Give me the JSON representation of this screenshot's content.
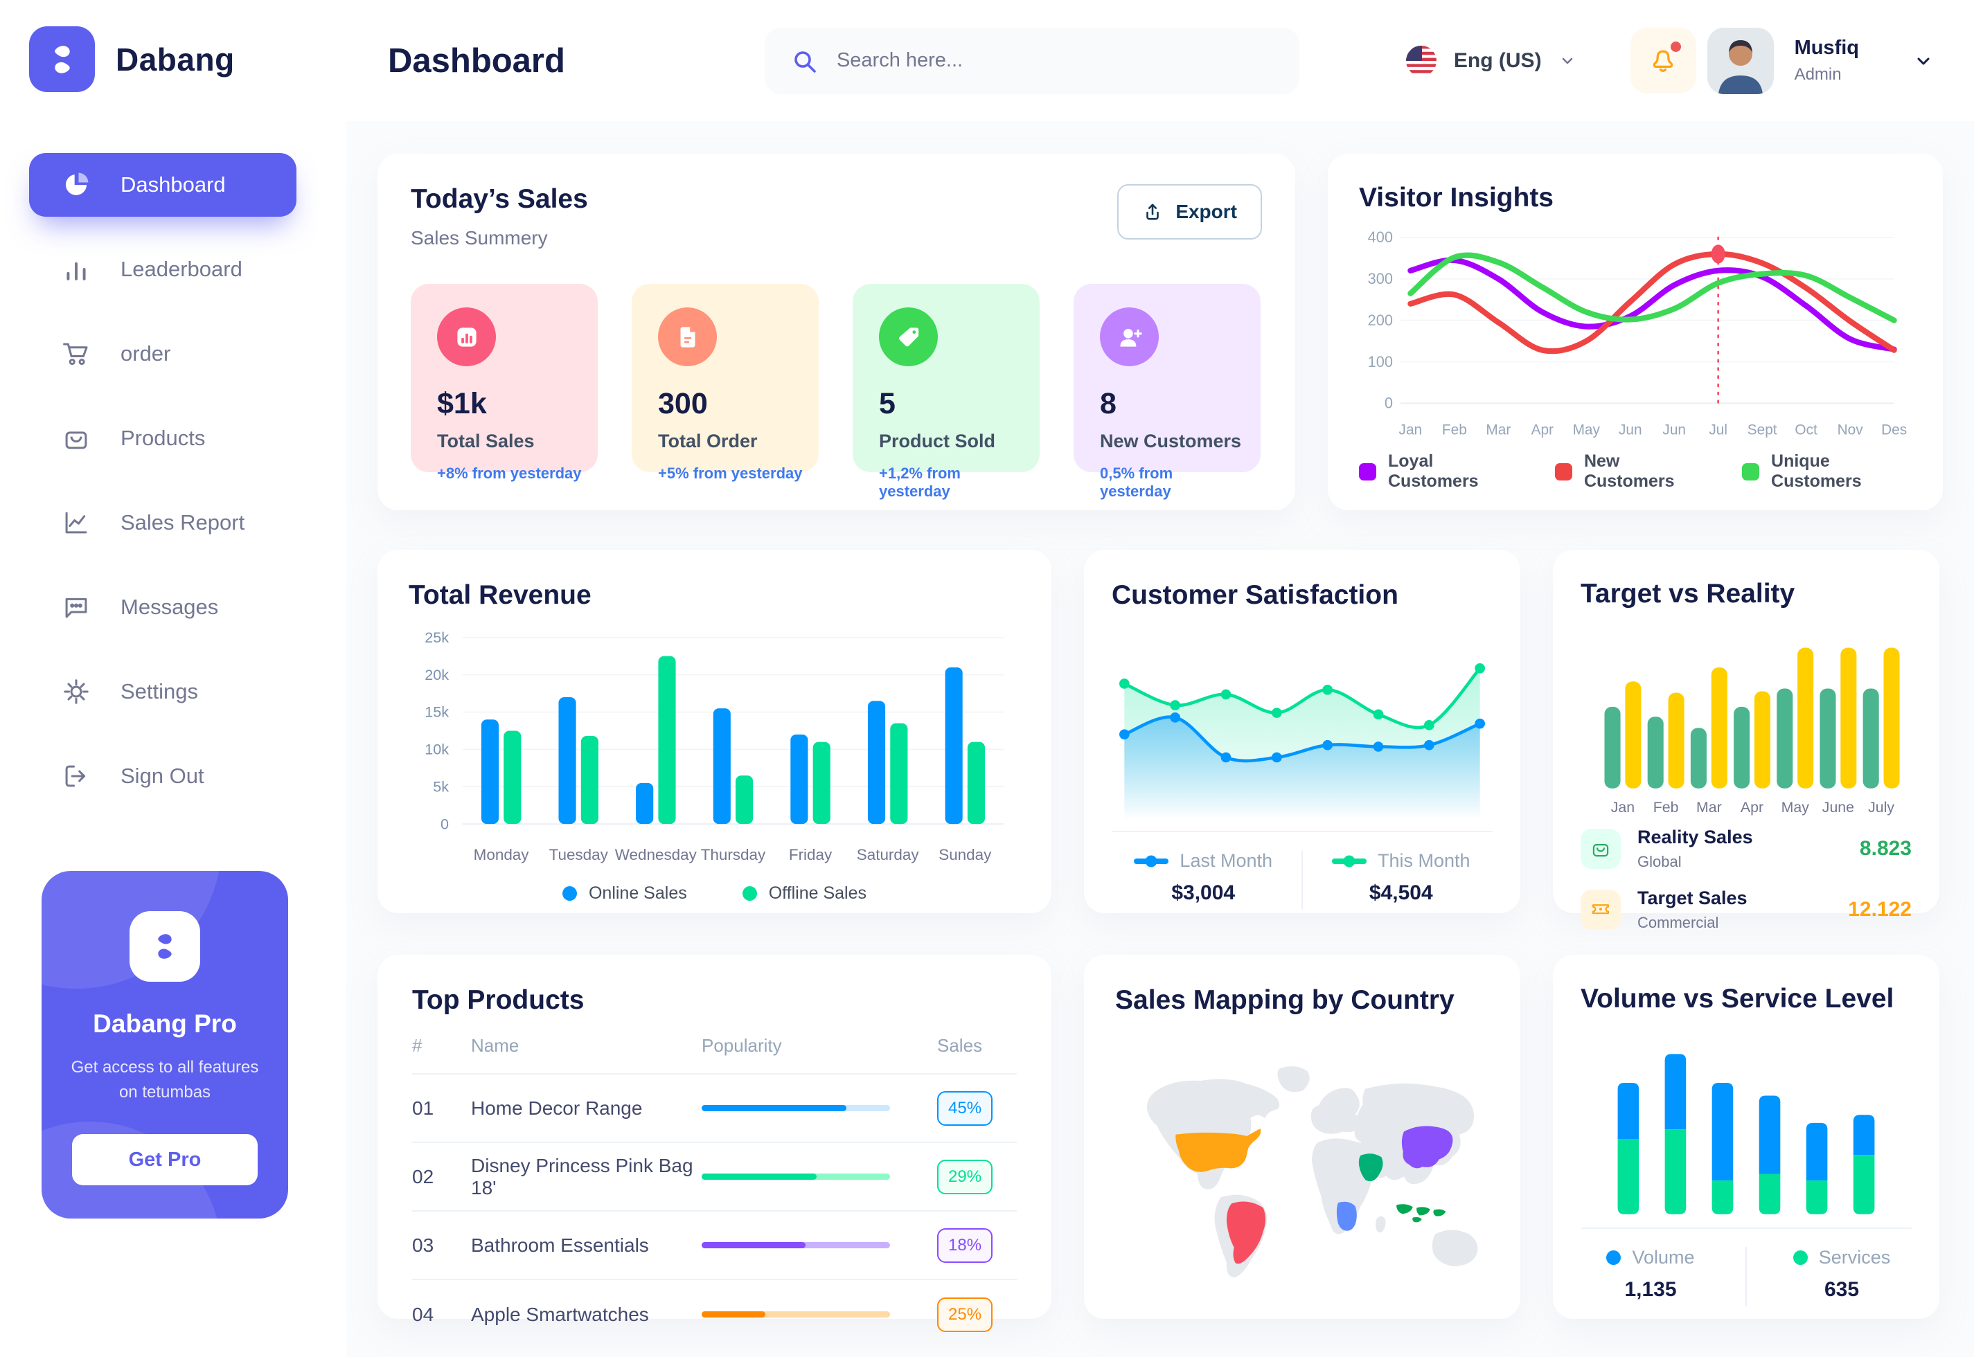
{
  "brand": {
    "name": "Dabang"
  },
  "sidebar": {
    "items": [
      {
        "label": "Dashboard"
      },
      {
        "label": "Leaderboard"
      },
      {
        "label": "order"
      },
      {
        "label": "Products"
      },
      {
        "label": "Sales Report"
      },
      {
        "label": "Messages"
      },
      {
        "label": "Settings"
      },
      {
        "label": "Sign Out"
      }
    ],
    "pro_card": {
      "title": "Dabang Pro",
      "subtitle": "Get access to all features on tetumbas",
      "button": "Get Pro"
    }
  },
  "header": {
    "title": "Dashboard",
    "search_placeholder": "Search here...",
    "language": "Eng (US)",
    "user_name": "Musfiq",
    "user_role": "Admin",
    "icons": {
      "bell": "notification-bell",
      "flag": "us-flag"
    }
  },
  "today_sales": {
    "title": "Today’s Sales",
    "subtitle": "Sales Summery",
    "export_label": "Export",
    "cards": [
      {
        "value": "$1k",
        "label": "Total Sales",
        "delta": "+8% from yesterday",
        "bg": "#FFE2E5",
        "icon_bg": "#FA5A7D",
        "icon": "bar-chart-icon"
      },
      {
        "value": "300",
        "label": "Total Order",
        "delta": "+5% from yesterday",
        "bg": "#FFF4DE",
        "icon_bg": "#FF947A",
        "icon": "receipt-icon"
      },
      {
        "value": "5",
        "label": "Product Sold",
        "delta": "+1,2% from yesterday",
        "bg": "#DCFCE7",
        "icon_bg": "#3CD856",
        "icon": "tag-icon"
      },
      {
        "value": "8",
        "label": "New Customers",
        "delta": "0,5% from yesterday",
        "bg": "#F3E8FF",
        "icon_bg": "#BF83FF",
        "icon": "user-plus-icon"
      }
    ]
  },
  "chart_data": [
    {
      "id": "visitor_insights",
      "type": "line",
      "title": "Visitor Insights",
      "x": [
        "Jan",
        "Feb",
        "Mar",
        "Apr",
        "May",
        "Jun",
        "Jun",
        "Jul",
        "Sept",
        "Oct",
        "Nov",
        "Des"
      ],
      "ylim": [
        0,
        400
      ],
      "yticks": [
        0,
        100,
        200,
        300,
        400
      ],
      "grid": true,
      "legend_position": "bottom",
      "series": [
        {
          "name": "Loyal Customers",
          "color": "#A700FF",
          "values": [
            320,
            345,
            300,
            220,
            185,
            210,
            285,
            320,
            305,
            235,
            155,
            130
          ]
        },
        {
          "name": "New Customers",
          "color": "#EF4444",
          "values": [
            240,
            262,
            195,
            128,
            150,
            245,
            335,
            360,
            338,
            278,
            198,
            128
          ]
        },
        {
          "name": "Unique Customers",
          "color": "#3CD856",
          "values": [
            265,
            352,
            340,
            280,
            220,
            202,
            228,
            290,
            312,
            308,
            255,
            200
          ]
        }
      ],
      "marker": {
        "x_index": 7,
        "series": "New Customers",
        "value": 360,
        "color": "#F64E60"
      }
    },
    {
      "id": "total_revenue",
      "type": "bar",
      "title": "Total Revenue",
      "categories": [
        "Monday",
        "Tuesday",
        "Wednesday",
        "Thursday",
        "Friday",
        "Saturday",
        "Sunday"
      ],
      "ylim": [
        0,
        25000
      ],
      "yticks": [
        0,
        5000,
        10000,
        15000,
        20000,
        25000
      ],
      "ytick_labels": [
        "0",
        "5k",
        "10k",
        "15k",
        "20k",
        "25k"
      ],
      "grid": true,
      "legend_position": "bottom",
      "series": [
        {
          "name": "Online Sales",
          "color": "#0095FF",
          "values": [
            14000,
            17000,
            5500,
            15500,
            12000,
            16500,
            21000
          ]
        },
        {
          "name": "Offline Sales",
          "color": "#00E096",
          "values": [
            12500,
            11800,
            22500,
            6500,
            11000,
            13500,
            11000
          ]
        }
      ]
    },
    {
      "id": "customer_satisfaction",
      "type": "area",
      "title": "Customer Satisfaction",
      "ylim": [
        0,
        100
      ],
      "legend_position": "bottom",
      "series": [
        {
          "name": "Last Month",
          "total": "$3,004",
          "color": "#0095FF",
          "values": [
            45,
            56,
            30,
            30,
            38,
            37,
            38,
            52
          ]
        },
        {
          "name": "This Month",
          "total": "$4,504",
          "color": "#00E096",
          "values": [
            78,
            64,
            71,
            59,
            74,
            58,
            51,
            88
          ]
        }
      ]
    },
    {
      "id": "target_vs_reality",
      "type": "bar",
      "title": "Target vs Reality",
      "categories": [
        "Jan",
        "Feb",
        "Mar",
        "Apr",
        "May",
        "June",
        "July"
      ],
      "ylim": [
        0,
        100
      ],
      "series": [
        {
          "name": "Reality Sales",
          "color": "#4AB58E",
          "values": [
            58,
            51,
            43,
            58,
            71,
            71,
            71
          ]
        },
        {
          "name": "Target Sales",
          "color": "#FFCF00",
          "values": [
            76,
            68,
            86,
            69,
            100,
            100,
            100
          ]
        }
      ],
      "legend": [
        {
          "name": "Reality Sales",
          "caption": "Global",
          "value": "8.823",
          "value_color": "#27AE60",
          "tile_bg": "#E2FFF3",
          "icon": "shopping-bag-icon"
        },
        {
          "name": "Target Sales",
          "caption": "Commercial",
          "value": "12.122",
          "value_color": "#FFA412",
          "tile_bg": "#FFF4DE",
          "icon": "ticket-icon"
        }
      ]
    },
    {
      "id": "top_products",
      "type": "table",
      "title": "Top Products",
      "columns": [
        "#",
        "Name",
        "Popularity",
        "Sales"
      ],
      "rows": [
        {
          "num": "01",
          "name": "Home Decor Range",
          "popularity": 77,
          "sales": "45%",
          "color": "#0095FF",
          "track": "#CDE7FF",
          "badge_bg": "#F0F9FF"
        },
        {
          "num": "02",
          "name": "Disney Princess Pink Bag 18'",
          "popularity": 61,
          "sales": "29%",
          "color": "#00E096",
          "track": "#8CFAC7",
          "badge_bg": "#EFFFF8"
        },
        {
          "num": "03",
          "name": "Bathroom Essentials",
          "popularity": 55,
          "sales": "18%",
          "color": "#884DFF",
          "track": "#C9B0FF",
          "badge_bg": "#FAF5FF"
        },
        {
          "num": "04",
          "name": "Apple Smartwatches",
          "popularity": 34,
          "sales": "25%",
          "color": "#FF8900",
          "track": "#FFD9A6",
          "badge_bg": "#FFF8EE"
        }
      ]
    },
    {
      "id": "sales_mapping",
      "type": "map",
      "title": "Sales Mapping by Country",
      "countries": [
        {
          "name": "United States",
          "color": "#FFA412"
        },
        {
          "name": "Brazil",
          "color": "#F64E60"
        },
        {
          "name": "China",
          "color": "#8950FC"
        },
        {
          "name": "Saudi Arabia",
          "color": "#00B074"
        },
        {
          "name": "DR Congo",
          "color": "#5E8BFF"
        },
        {
          "name": "Indonesia",
          "color": "#00A851"
        }
      ]
    },
    {
      "id": "volume_service",
      "type": "bar",
      "title": "Volume vs Service Level",
      "stacked": true,
      "legend_position": "bottom",
      "series": [
        {
          "name": "Volume",
          "total": "1,135",
          "color": "#0095FF",
          "values": [
            35,
            47,
            61,
            49,
            36,
            25
          ]
        },
        {
          "name": "Services",
          "total": "635",
          "color": "#00E096",
          "values": [
            47,
            53,
            21,
            25,
            21,
            37
          ]
        }
      ]
    }
  ]
}
